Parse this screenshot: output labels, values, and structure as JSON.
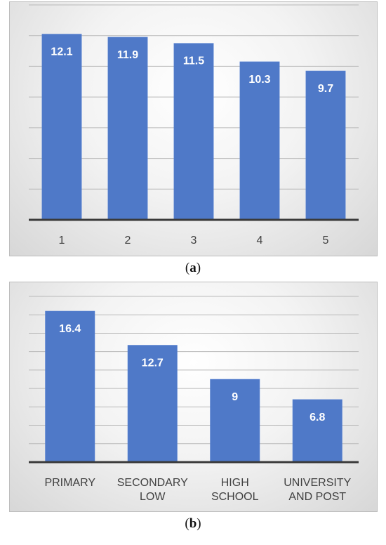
{
  "chart_data": [
    {
      "type": "bar",
      "categories": [
        "1",
        "2",
        "3",
        "4",
        "5"
      ],
      "values": [
        12.1,
        11.9,
        11.5,
        10.3,
        9.7
      ],
      "ylim": [
        0,
        14
      ],
      "grid": true,
      "data_labels": true,
      "bar_color": "#4f79c8"
    },
    {
      "type": "bar",
      "categories": [
        "PRIMARY",
        "SECONDARY LOW",
        "HIGH SCHOOL",
        "UNIVERSITY AND POST"
      ],
      "category_lines": [
        [
          "PRIMARY"
        ],
        [
          "SECONDARY",
          "LOW"
        ],
        [
          "HIGH",
          "SCHOOL"
        ],
        [
          "UNIVERSITY",
          "AND POST"
        ]
      ],
      "values": [
        16.4,
        12.7,
        9,
        6.8
      ],
      "ylim": [
        0,
        18
      ],
      "grid": true,
      "data_labels": true,
      "bar_color": "#4f79c8"
    }
  ],
  "captions": {
    "a": {
      "open": "(",
      "letter": "a",
      "close": ")"
    },
    "b": {
      "open": "(",
      "letter": "b",
      "close": ")"
    }
  }
}
